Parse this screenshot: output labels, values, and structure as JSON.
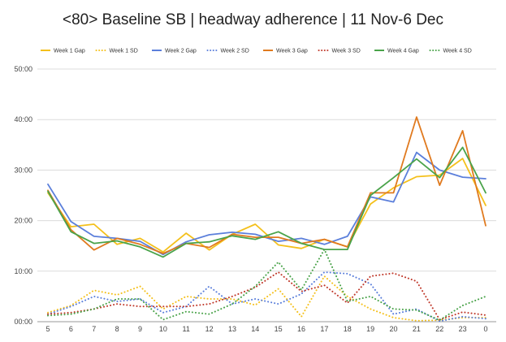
{
  "chart_data": {
    "type": "line",
    "title": "<80> Baseline SB | headway adherence | 11 Nov-6 Dec",
    "xlabel": "",
    "ylabel": "",
    "categories": [
      "5",
      "6",
      "7",
      "8",
      "9",
      "10",
      "11",
      "12",
      "13",
      "14",
      "15",
      "16",
      "17",
      "18",
      "19",
      "20",
      "21",
      "22",
      "23",
      "0"
    ],
    "y_ticks": [
      "00:00",
      "10:00",
      "20:00",
      "30:00",
      "40:00",
      "50:00"
    ],
    "ylim": [
      0,
      50
    ],
    "grid": true,
    "legend_position": "top",
    "series": [
      {
        "name": "Week 1 Gap",
        "color": "#f4c01b",
        "style": "solid",
        "values": [
          25.5,
          18.8,
          19.3,
          15.3,
          16.5,
          13.8,
          17.5,
          14.2,
          17.3,
          19.3,
          15.2,
          14.5,
          16.3,
          14.8,
          23.3,
          26.5,
          28.7,
          29.0,
          32.3,
          23.0
        ]
      },
      {
        "name": "Week 1 SD",
        "color": "#f4c01b",
        "style": "dotted",
        "values": [
          1.8,
          3.2,
          6.2,
          5.3,
          7.0,
          2.5,
          5.0,
          4.5,
          4.5,
          3.3,
          6.5,
          1.0,
          9.0,
          5.0,
          2.5,
          0.8,
          0.2,
          0.3,
          0.8,
          0.8
        ]
      },
      {
        "name": "Week 2 Gap",
        "color": "#5b7fdb",
        "style": "solid",
        "values": [
          27.2,
          19.8,
          16.9,
          16.5,
          15.9,
          13.3,
          15.8,
          17.2,
          17.7,
          17.3,
          15.9,
          16.5,
          15.3,
          16.9,
          24.7,
          23.7,
          33.5,
          30.0,
          28.6,
          28.3
        ]
      },
      {
        "name": "Week 2 SD",
        "color": "#5b7fdb",
        "style": "dotted",
        "values": [
          1.5,
          3.0,
          5.0,
          4.0,
          4.5,
          1.8,
          3.0,
          7.0,
          3.5,
          4.5,
          3.5,
          5.5,
          9.8,
          9.5,
          7.5,
          1.5,
          2.5,
          0.1,
          1.0,
          0.6
        ]
      },
      {
        "name": "Week 3 Gap",
        "color": "#e07a1f",
        "style": "solid",
        "values": [
          26.0,
          18.2,
          14.2,
          16.5,
          15.3,
          13.5,
          15.5,
          14.7,
          17.3,
          16.7,
          16.7,
          15.5,
          16.3,
          14.8,
          25.5,
          25.5,
          40.5,
          27.0,
          37.8,
          19.0
        ]
      },
      {
        "name": "Week 3 SD",
        "color": "#c0392b",
        "style": "dotted",
        "values": [
          1.5,
          1.8,
          2.5,
          3.5,
          3.0,
          3.0,
          3.0,
          3.5,
          5.0,
          6.8,
          9.8,
          6.0,
          7.2,
          3.7,
          9.0,
          9.6,
          8.0,
          0.4,
          1.9,
          1.3
        ]
      },
      {
        "name": "Week 4 Gap",
        "color": "#4aa34a",
        "style": "solid",
        "values": [
          25.8,
          17.8,
          15.5,
          16.0,
          14.8,
          12.8,
          15.5,
          15.8,
          17.0,
          16.3,
          17.8,
          15.5,
          14.3,
          14.3,
          25.0,
          28.5,
          32.2,
          28.5,
          34.5,
          25.5
        ]
      },
      {
        "name": "Week 4 SD",
        "color": "#4aa34a",
        "style": "dotted",
        "values": [
          1.2,
          1.5,
          2.5,
          4.5,
          4.5,
          0.4,
          2.0,
          1.5,
          3.5,
          7.0,
          11.8,
          6.3,
          14.3,
          4.0,
          5.0,
          2.5,
          2.3,
          0.3,
          3.2,
          5.0
        ]
      }
    ]
  }
}
